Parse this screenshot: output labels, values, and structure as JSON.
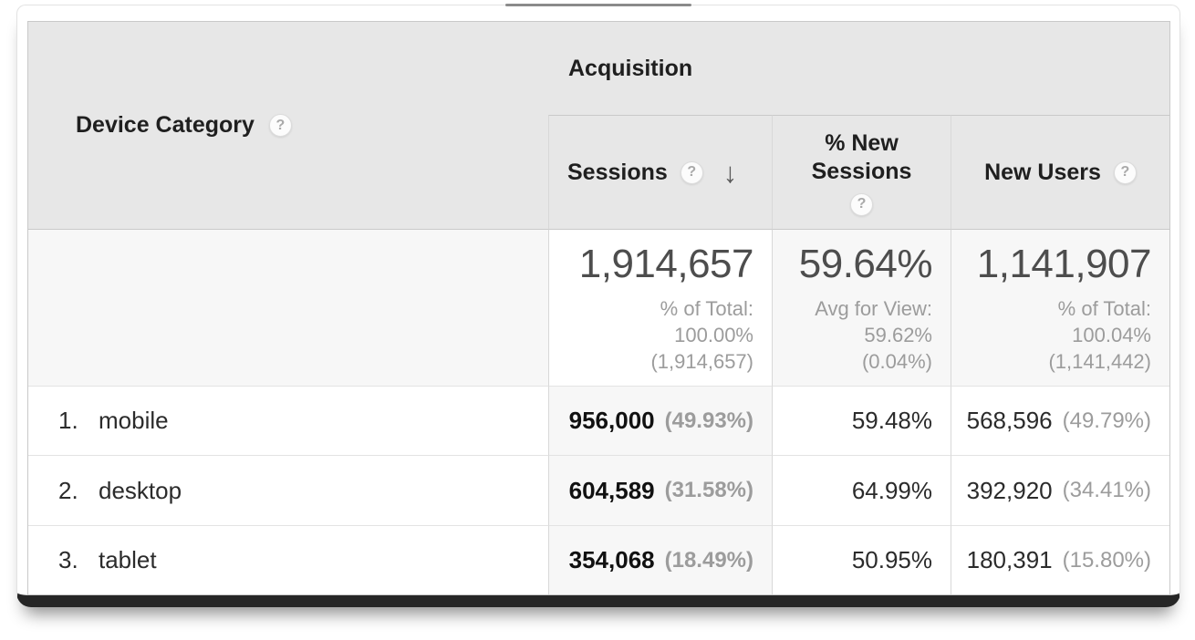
{
  "icons": {
    "help": "?",
    "sort_desc": "↓"
  },
  "colors": {
    "header_bg": "#e7e7e7",
    "summary_bg": "#f7f7f7",
    "highlight_bg": "#f7f7f7",
    "text_dark": "#1f1f1f",
    "text_total": "#4d4d4d",
    "text_gray": "#9c9c9c",
    "frame_bottom": "#262626"
  },
  "table": {
    "dimension_column": {
      "label": "Device Category"
    },
    "group_header": {
      "label": "Acquisition"
    },
    "metric_columns": {
      "sessions": {
        "label": "Sessions",
        "sorted": "descending"
      },
      "percent_new_sessions": {
        "label": "% New Sessions"
      },
      "new_users": {
        "label": "New Users"
      }
    },
    "summary": {
      "sessions": {
        "value": "1,914,657",
        "lines": [
          "% of Total:",
          "100.00%",
          "(1,914,657)"
        ]
      },
      "percent_new_sessions": {
        "value": "59.64%",
        "lines": [
          "Avg for View:",
          "59.62%",
          "(0.04%)"
        ]
      },
      "new_users": {
        "value": "1,141,907",
        "lines": [
          "% of Total:",
          "100.04%",
          "(1,141,442)"
        ]
      }
    },
    "rows": [
      {
        "rank": "1.",
        "device": "mobile",
        "sessions": "956,000",
        "sessions_share": "(49.93%)",
        "percent_new_sessions": "59.48%",
        "new_users": "568,596",
        "new_users_share": "(49.79%)"
      },
      {
        "rank": "2.",
        "device": "desktop",
        "sessions": "604,589",
        "sessions_share": "(31.58%)",
        "percent_new_sessions": "64.99%",
        "new_users": "392,920",
        "new_users_share": "(34.41%)"
      },
      {
        "rank": "3.",
        "device": "tablet",
        "sessions": "354,068",
        "sessions_share": "(18.49%)",
        "percent_new_sessions": "50.95%",
        "new_users": "180,391",
        "new_users_share": "(15.80%)"
      }
    ]
  }
}
